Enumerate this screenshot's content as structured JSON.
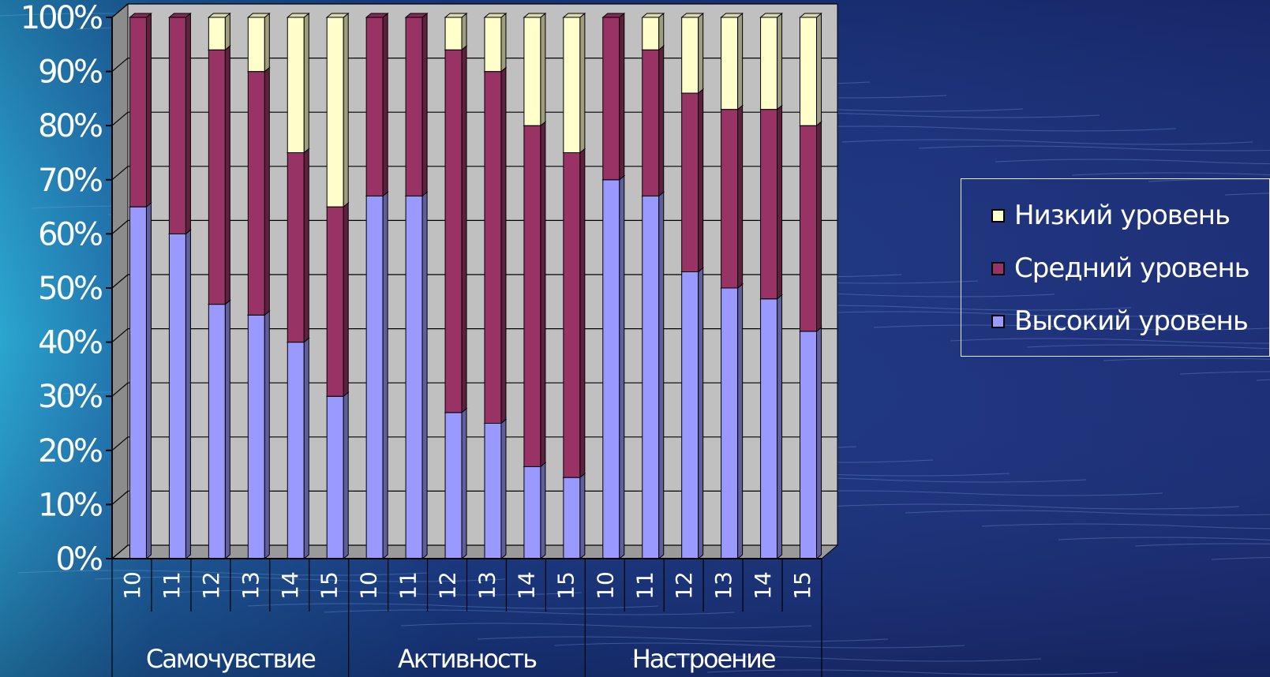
{
  "chart_data": {
    "type": "bar",
    "stacked": true,
    "percent_stacked": true,
    "style": "3d-column",
    "categories": [
      "10",
      "11",
      "12",
      "13",
      "14",
      "15",
      "10",
      "11",
      "12",
      "13",
      "14",
      "15",
      "10",
      "11",
      "12",
      "13",
      "14",
      "15"
    ],
    "groups": [
      {
        "label": "Самочувствие",
        "categories": [
          "10",
          "11",
          "12",
          "13",
          "14",
          "15"
        ]
      },
      {
        "label": "Активность",
        "categories": [
          "10",
          "11",
          "12",
          "13",
          "14",
          "15"
        ]
      },
      {
        "label": "Настроение",
        "categories": [
          "10",
          "11",
          "12",
          "13",
          "14",
          "15"
        ]
      }
    ],
    "series": [
      {
        "name": "Высокий уровень",
        "color": "#9999ff",
        "values": [
          65,
          60,
          47,
          45,
          40,
          30,
          67,
          67,
          27,
          25,
          17,
          15,
          70,
          67,
          53,
          50,
          48,
          42
        ]
      },
      {
        "name": "Средний уровень",
        "color": "#993366",
        "values": [
          35,
          40,
          47,
          45,
          35,
          35,
          33,
          33,
          67,
          65,
          63,
          60,
          30,
          27,
          33,
          33,
          35,
          38
        ]
      },
      {
        "name": "Низкий уровень",
        "color": "#ffffcc",
        "values": [
          0,
          0,
          6,
          10,
          25,
          35,
          0,
          0,
          6,
          10,
          20,
          25,
          0,
          6,
          14,
          17,
          17,
          20
        ]
      }
    ],
    "yticks": [
      "0%",
      "10%",
      "20%",
      "30%",
      "40%",
      "50%",
      "60%",
      "70%",
      "80%",
      "90%",
      "100%"
    ],
    "ylim": [
      0,
      100
    ],
    "grid": true,
    "legend_position": "right"
  },
  "colors": {
    "plot_back": "#c0c0c0",
    "plot_side": "#8c8c8c",
    "plot_floor": "#9a9a9a",
    "grid": "#000000",
    "text": "#ffffff"
  }
}
